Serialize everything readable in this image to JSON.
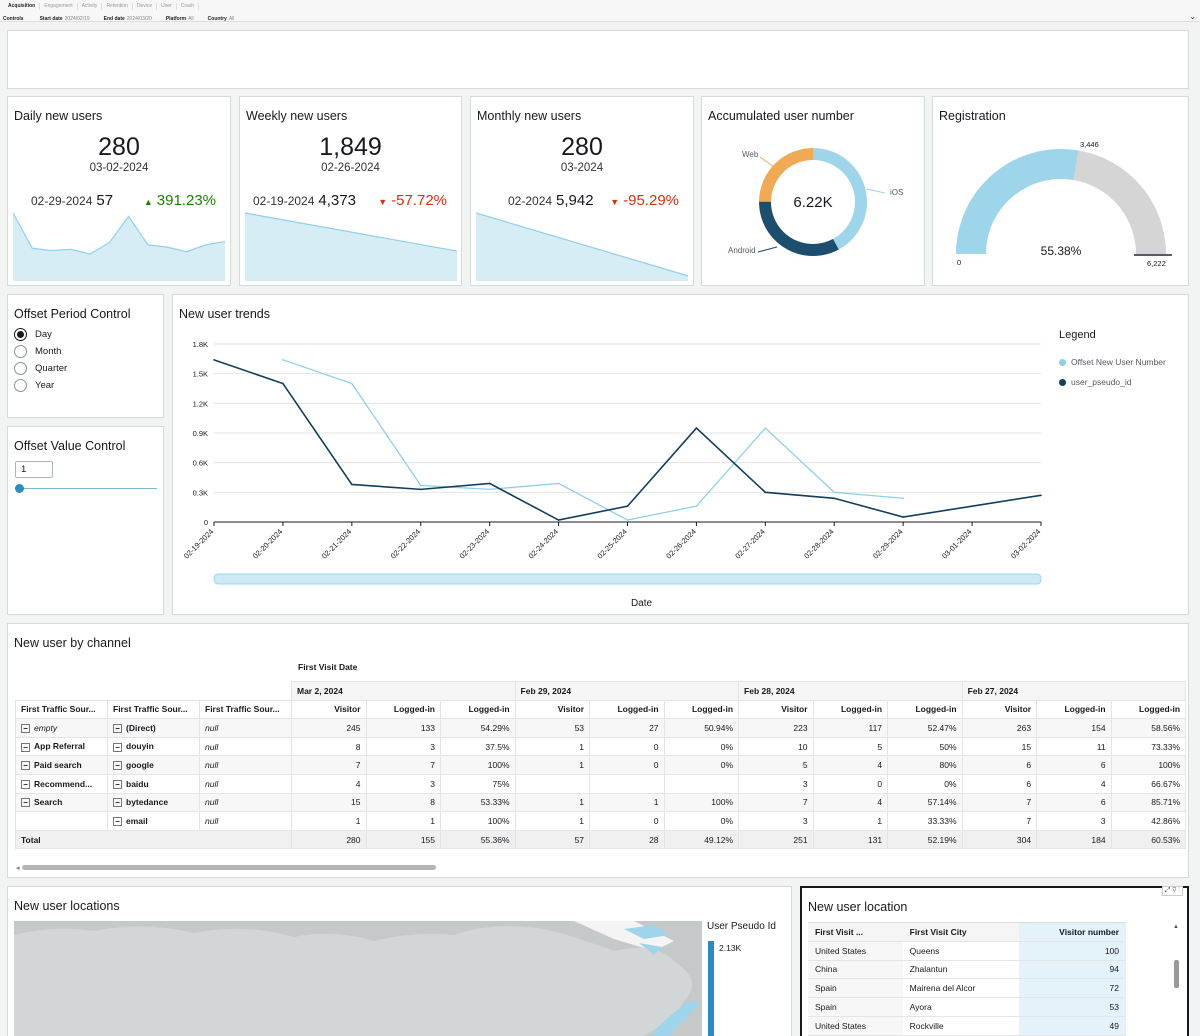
{
  "tabs": [
    "Acquisition",
    "Engagement",
    "Activity",
    "Retention",
    "Device",
    "User",
    "Crash"
  ],
  "controls": [
    {
      "label": "Controls",
      "value": ""
    },
    {
      "label": "Start date",
      "value": "2024/02/19"
    },
    {
      "label": "End date",
      "value": "2024/03/20"
    },
    {
      "label": "Platform",
      "value": "All"
    },
    {
      "label": "Country",
      "value": "All"
    }
  ],
  "kpis": {
    "daily": {
      "title": "Daily new users",
      "value": "280",
      "date": "03-02-2024",
      "prev_date": "02-29-2024",
      "prev_value": "57",
      "change": "391.23%",
      "dir": "up",
      "spark": [
        58,
        27,
        25,
        26,
        22,
        32,
        55,
        30,
        28,
        24,
        30,
        33
      ]
    },
    "weekly": {
      "title": "Weekly new users",
      "value": "1,849",
      "date": "02-26-2024",
      "prev_date": "02-19-2024",
      "prev_value": "4,373",
      "change": "-57.72%",
      "dir": "down",
      "spark": [
        4373,
        1849
      ]
    },
    "monthly": {
      "title": "Monthly new users",
      "value": "280",
      "date": "03-2024",
      "prev_date": "02-2024",
      "prev_value": "5,942",
      "change": "-95.29%",
      "dir": "down",
      "spark": [
        5942,
        280
      ]
    }
  },
  "accumulated": {
    "title": "Accumulated user number",
    "total": "6.22K",
    "segments": [
      {
        "name": "iOS",
        "value": 0.42,
        "color": "#9ed5ea"
      },
      {
        "name": "Android",
        "value": 0.33,
        "color": "#1e4e6e"
      },
      {
        "name": "Web",
        "value": 0.25,
        "color": "#f0a955"
      }
    ]
  },
  "registration": {
    "title": "Registration",
    "percent": "55.38%",
    "value": 3446,
    "max": 6222,
    "min_label": "0",
    "value_label": "3,446",
    "max_label": "6,222",
    "fill_fraction": 0.5538
  },
  "offset_period": {
    "title": "Offset Period Control",
    "options": [
      "Day",
      "Month",
      "Quarter",
      "Year"
    ],
    "selected": "Day"
  },
  "offset_value": {
    "title": "Offset Value Control",
    "value": "1",
    "slider_fraction": 0.0
  },
  "chart_data": {
    "type": "line",
    "title": "New user trends",
    "xlabel": "Date",
    "ylabel": "",
    "categories": [
      "02-19-2024",
      "02-20-2024",
      "02-21-2024",
      "02-22-2024",
      "02-23-2024",
      "02-24-2024",
      "02-25-2024",
      "02-26-2024",
      "02-27-2024",
      "02-28-2024",
      "02-29-2024",
      "03-01-2024",
      "03-02-2024"
    ],
    "y_ticks": [
      "0",
      "0.3K",
      "0.6K",
      "0.9K",
      "1.2K",
      "1.5K",
      "1.8K"
    ],
    "ylim": [
      0,
      1800
    ],
    "legend_title": "Legend",
    "series": [
      {
        "name": "Offset New User Number",
        "color": "#8fd0e8",
        "values": [
          null,
          1640,
          1400,
          370,
          330,
          390,
          20,
          160,
          950,
          300,
          240,
          null,
          null
        ]
      },
      {
        "name": "user_pseudo_id",
        "color": "#123f5e",
        "values": [
          1640,
          1400,
          380,
          330,
          390,
          20,
          160,
          950,
          300,
          240,
          50,
          160,
          270
        ]
      }
    ]
  },
  "channel_table": {
    "title": "New user by channel",
    "col_group_label": "First Visit Date",
    "row_headers": [
      "First Traffic Sour...",
      "First Traffic Sour...",
      "First Traffic Sour..."
    ],
    "dates": [
      "Mar 2, 2024",
      "Feb 29, 2024",
      "Feb 28, 2024",
      "Feb 27, 2024"
    ],
    "metrics": [
      "Visitor",
      "Logged-in",
      "Logged-in"
    ],
    "rows": [
      {
        "c1": "empty",
        "c2": "(Direct)",
        "c3": "null",
        "vals": [
          "245",
          "133",
          "54.29%",
          "53",
          "27",
          "50.94%",
          "223",
          "117",
          "52.47%",
          "263",
          "154",
          "58.56%"
        ]
      },
      {
        "c1": "App Referral",
        "c2": "douyin",
        "c3": "null",
        "vals": [
          "8",
          "3",
          "37.5%",
          "1",
          "0",
          "0%",
          "10",
          "5",
          "50%",
          "15",
          "11",
          "73.33%"
        ]
      },
      {
        "c1": "Paid search",
        "c2": "google",
        "c3": "null",
        "vals": [
          "7",
          "7",
          "100%",
          "1",
          "0",
          "0%",
          "5",
          "4",
          "80%",
          "6",
          "6",
          "100%"
        ]
      },
      {
        "c1": "Recommend...",
        "c2": "baidu",
        "c3": "null",
        "vals": [
          "4",
          "3",
          "75%",
          "",
          "",
          "",
          "3",
          "0",
          "0%",
          "6",
          "4",
          "66.67%"
        ]
      },
      {
        "c1": "Search",
        "c2": "bytedance",
        "c3": "null",
        "vals": [
          "15",
          "8",
          "53.33%",
          "1",
          "1",
          "100%",
          "7",
          "4",
          "57.14%",
          "7",
          "6",
          "85.71%"
        ]
      },
      {
        "c1": "",
        "c2": "email",
        "c3": "null",
        "vals": [
          "1",
          "1",
          "100%",
          "1",
          "0",
          "0%",
          "3",
          "1",
          "33.33%",
          "7",
          "3",
          "42.86%"
        ]
      }
    ],
    "total": {
      "label": "Total",
      "vals": [
        "280",
        "155",
        "55.36%",
        "57",
        "28",
        "49.12%",
        "251",
        "131",
        "52.19%",
        "304",
        "184",
        "60.53%"
      ]
    }
  },
  "locations_map": {
    "title": "New user locations",
    "legend_title": "User Pseudo Id",
    "legend_max": "2.13K"
  },
  "location_table": {
    "title": "New user location",
    "headers": [
      "First Visit ...",
      "First Visit City",
      "Visitor number"
    ],
    "rows": [
      [
        "United States",
        "Queens",
        "100"
      ],
      [
        "China",
        "Zhalantun",
        "94"
      ],
      [
        "Spain",
        "Mairena del Alcor",
        "72"
      ],
      [
        "Spain",
        "Ayora",
        "53"
      ],
      [
        "United States",
        "Rockville",
        "49"
      ]
    ]
  }
}
